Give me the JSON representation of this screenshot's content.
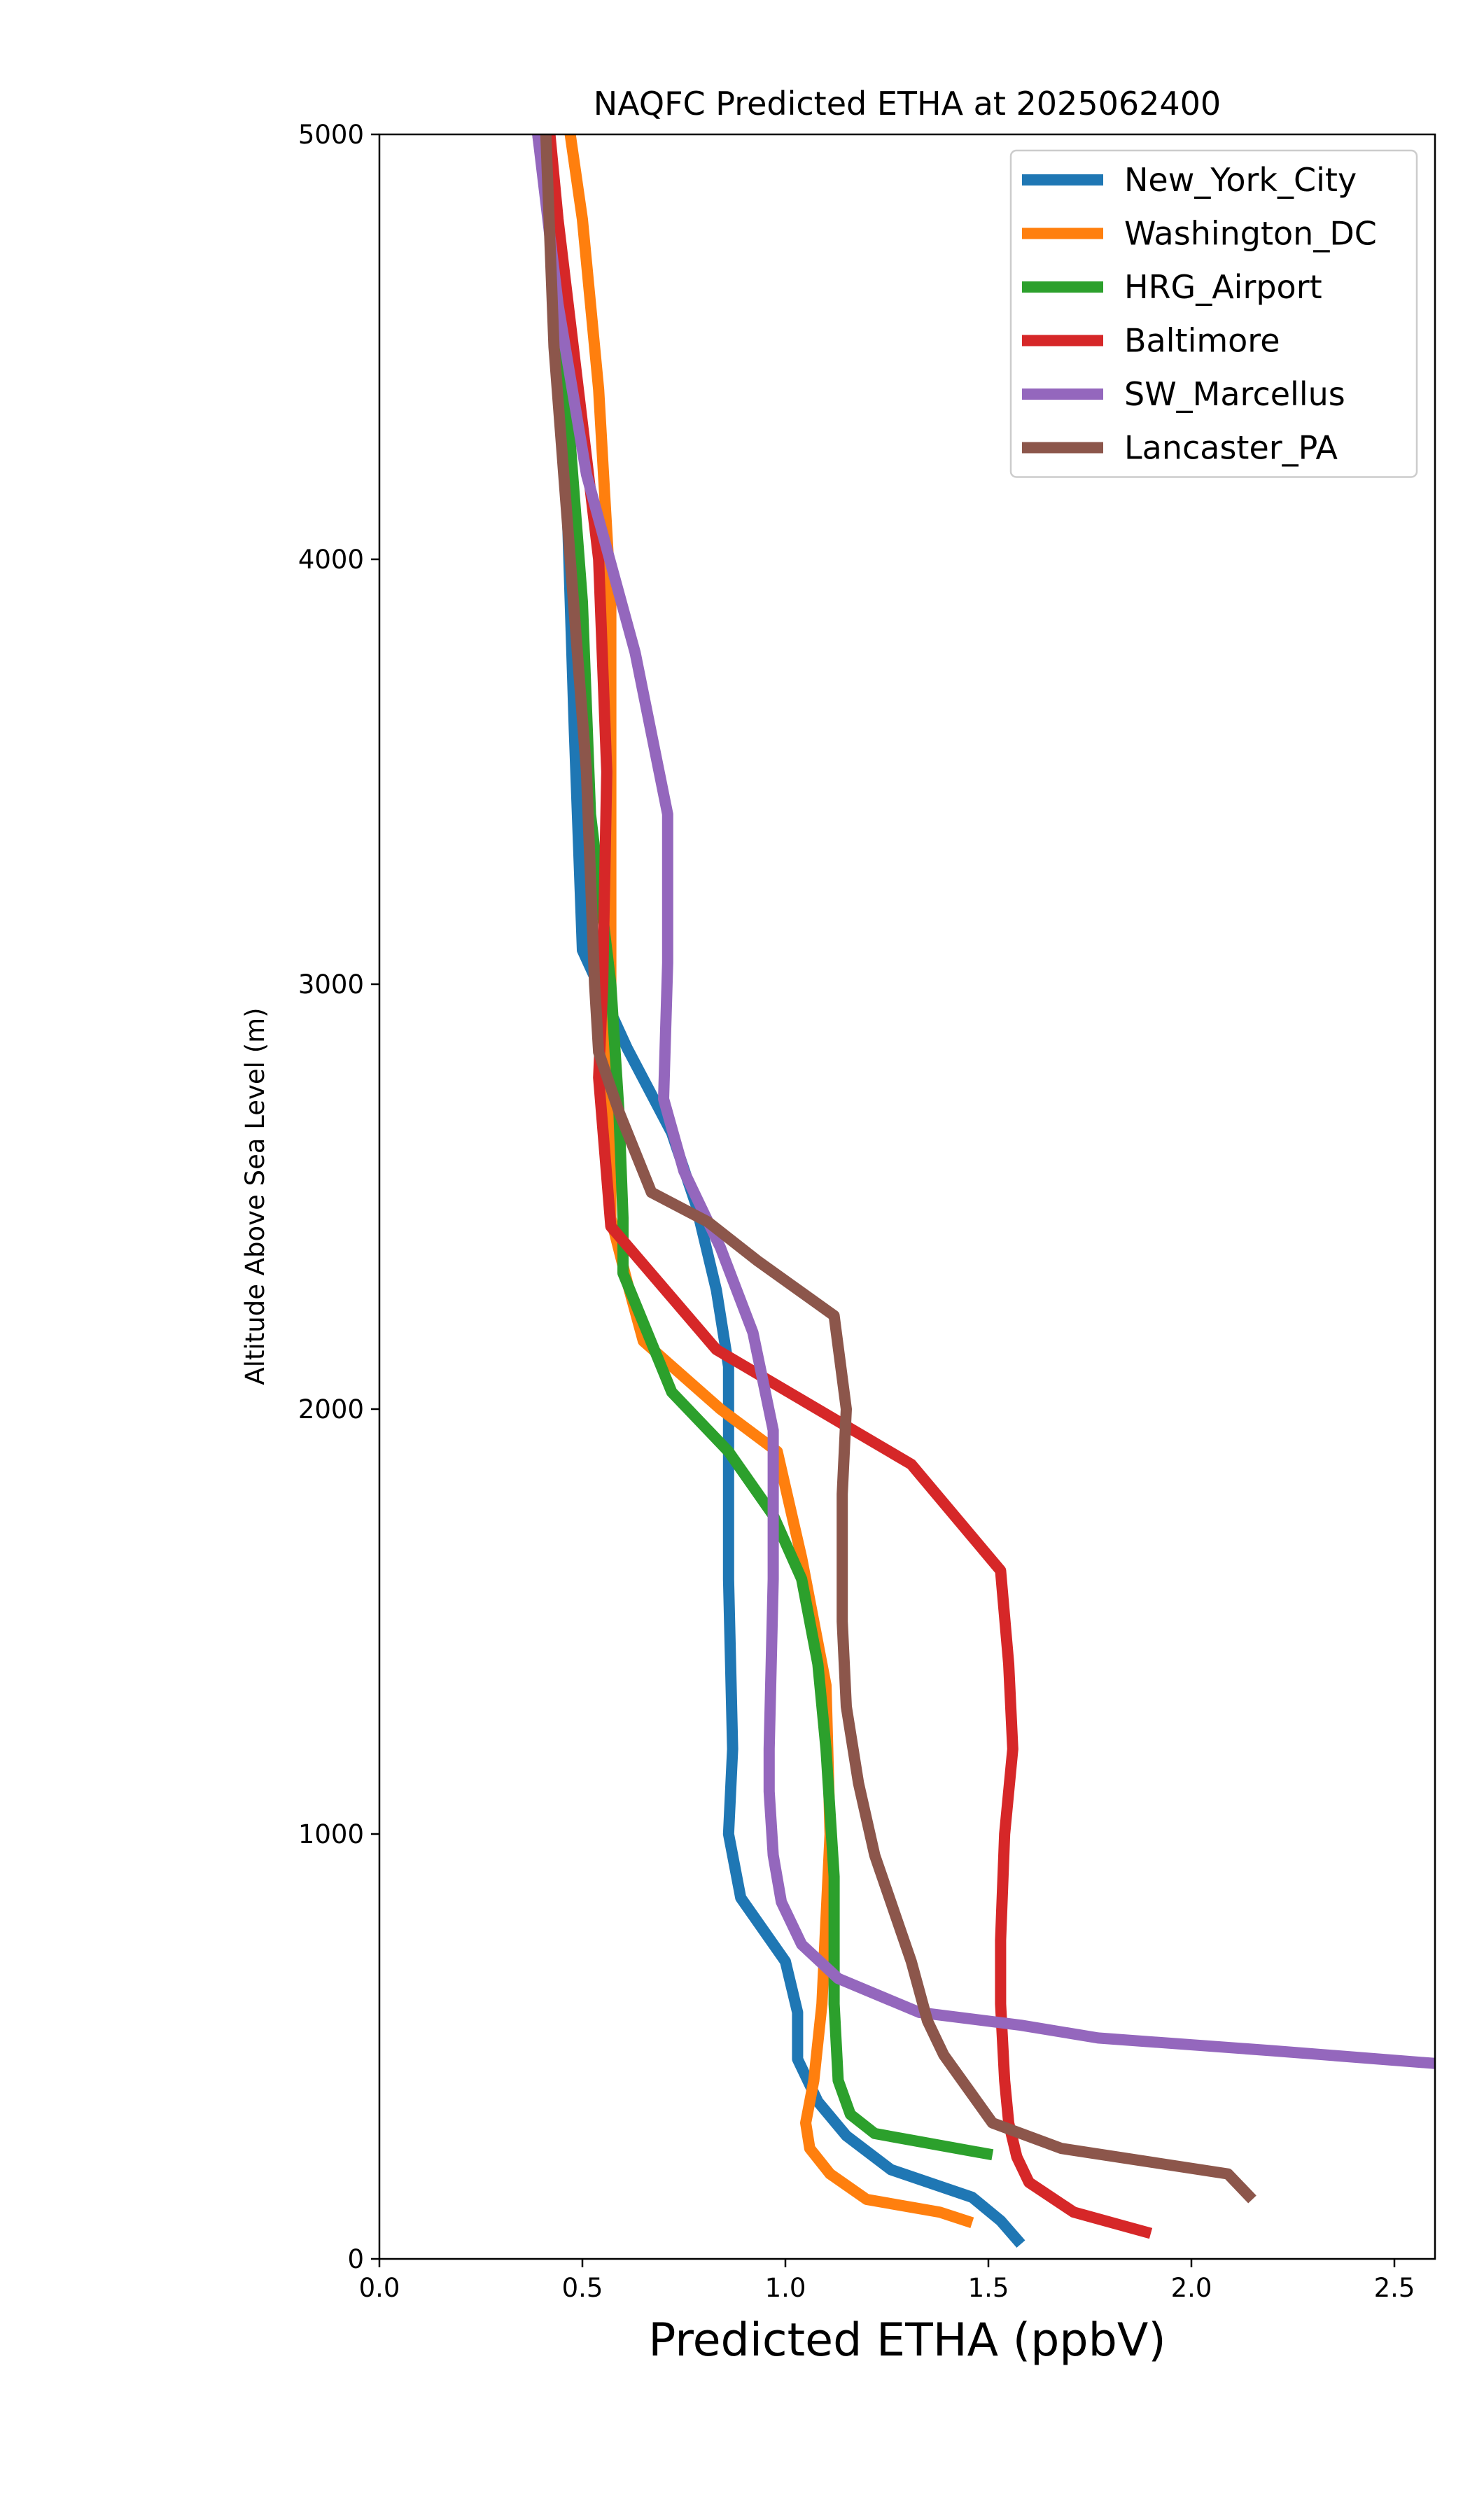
{
  "chart_data": {
    "type": "line",
    "title": "NAQFC Predicted ETHA at 2025062400",
    "xlabel": "Predicted ETHA (ppbV)",
    "ylabel": "Altitude Above Sea Level (m)",
    "xlim": [
      0,
      2.6
    ],
    "ylim": [
      0,
      5000
    ],
    "xticks": [
      "0.0",
      "0.5",
      "1.0",
      "1.5",
      "2.0",
      "2.5"
    ],
    "yticks": [
      "0",
      "1000",
      "2000",
      "3000",
      "4000",
      "5000"
    ],
    "grid": false,
    "legend_position": "top-right",
    "series": [
      {
        "name": "New_York_City",
        "color": "#1f77b4",
        "points": [
          [
            1.58,
            35
          ],
          [
            1.53,
            90
          ],
          [
            1.46,
            145
          ],
          [
            1.26,
            210
          ],
          [
            1.15,
            290
          ],
          [
            1.08,
            370
          ],
          [
            1.03,
            470
          ],
          [
            1.03,
            580
          ],
          [
            1.0,
            700
          ],
          [
            0.89,
            850
          ],
          [
            0.86,
            1000
          ],
          [
            0.87,
            1200
          ],
          [
            0.86,
            1600
          ],
          [
            0.86,
            2100
          ],
          [
            0.83,
            2280
          ],
          [
            0.78,
            2480
          ],
          [
            0.72,
            2650
          ],
          [
            0.61,
            2850
          ],
          [
            0.5,
            3080
          ],
          [
            0.48,
            3600
          ],
          [
            0.46,
            4200
          ],
          [
            0.44,
            4700
          ],
          [
            0.4,
            5000
          ]
        ]
      },
      {
        "name": "Washington_DC",
        "color": "#ff7f0e",
        "points": [
          [
            1.46,
            85
          ],
          [
            1.38,
            110
          ],
          [
            1.2,
            140
          ],
          [
            1.11,
            200
          ],
          [
            1.06,
            260
          ],
          [
            1.05,
            320
          ],
          [
            1.07,
            420
          ],
          [
            1.09,
            600
          ],
          [
            1.11,
            1000
          ],
          [
            1.1,
            1350
          ],
          [
            1.04,
            1650
          ],
          [
            0.98,
            1900
          ],
          [
            0.84,
            2000
          ],
          [
            0.65,
            2160
          ],
          [
            0.61,
            2300
          ],
          [
            0.57,
            2450
          ],
          [
            0.57,
            2800
          ],
          [
            0.57,
            3000
          ],
          [
            0.57,
            3500
          ],
          [
            0.57,
            3900
          ],
          [
            0.54,
            4400
          ],
          [
            0.5,
            4800
          ],
          [
            0.47,
            5000
          ]
        ]
      },
      {
        "name": "HRG_Airport",
        "color": "#2ca02c",
        "points": [
          [
            1.51,
            245
          ],
          [
            1.22,
            295
          ],
          [
            1.16,
            340
          ],
          [
            1.13,
            420
          ],
          [
            1.12,
            600
          ],
          [
            1.12,
            900
          ],
          [
            1.1,
            1200
          ],
          [
            1.08,
            1400
          ],
          [
            1.04,
            1600
          ],
          [
            0.97,
            1750
          ],
          [
            0.86,
            1900
          ],
          [
            0.72,
            2040
          ],
          [
            0.6,
            2320
          ],
          [
            0.6,
            2450
          ],
          [
            0.59,
            2700
          ],
          [
            0.57,
            3000
          ],
          [
            0.52,
            3400
          ],
          [
            0.5,
            3900
          ],
          [
            0.46,
            4400
          ],
          [
            0.42,
            4800
          ],
          [
            0.39,
            5000
          ]
        ]
      },
      {
        "name": "Baltimore",
        "color": "#d62728",
        "points": [
          [
            1.9,
            60
          ],
          [
            1.71,
            110
          ],
          [
            1.6,
            180
          ],
          [
            1.57,
            240
          ],
          [
            1.55,
            320
          ],
          [
            1.54,
            420
          ],
          [
            1.53,
            600
          ],
          [
            1.53,
            750
          ],
          [
            1.54,
            1000
          ],
          [
            1.56,
            1200
          ],
          [
            1.55,
            1400
          ],
          [
            1.53,
            1620
          ],
          [
            1.31,
            1870
          ],
          [
            1.15,
            1960
          ],
          [
            0.83,
            2140
          ],
          [
            0.57,
            2430
          ],
          [
            0.54,
            2780
          ],
          [
            0.55,
            3000
          ],
          [
            0.56,
            3500
          ],
          [
            0.54,
            4000
          ],
          [
            0.49,
            4400
          ],
          [
            0.44,
            4800
          ],
          [
            0.42,
            5000
          ]
        ]
      },
      {
        "name": "SW_Marcellus",
        "color": "#9467bd",
        "points": [
          [
            2.6,
            460
          ],
          [
            2.2,
            490
          ],
          [
            1.77,
            520
          ],
          [
            1.58,
            550
          ],
          [
            1.33,
            580
          ],
          [
            1.13,
            660
          ],
          [
            1.04,
            740
          ],
          [
            0.99,
            840
          ],
          [
            0.97,
            950
          ],
          [
            0.96,
            1100
          ],
          [
            0.96,
            1200
          ],
          [
            0.97,
            1600
          ],
          [
            0.97,
            1950
          ],
          [
            0.92,
            2180
          ],
          [
            0.84,
            2380
          ],
          [
            0.75,
            2560
          ],
          [
            0.7,
            2730
          ],
          [
            0.71,
            3050
          ],
          [
            0.71,
            3400
          ],
          [
            0.63,
            3780
          ],
          [
            0.51,
            4200
          ],
          [
            0.44,
            4600
          ],
          [
            0.39,
            5000
          ]
        ]
      },
      {
        "name": "Lancaster_PA",
        "color": "#8c564b",
        "points": [
          [
            2.15,
            140
          ],
          [
            2.09,
            200
          ],
          [
            1.68,
            260
          ],
          [
            1.51,
            320
          ],
          [
            1.45,
            400
          ],
          [
            1.39,
            480
          ],
          [
            1.35,
            560
          ],
          [
            1.31,
            700
          ],
          [
            1.22,
            950
          ],
          [
            1.18,
            1120
          ],
          [
            1.15,
            1300
          ],
          [
            1.14,
            1500
          ],
          [
            1.14,
            1800
          ],
          [
            1.15,
            2000
          ],
          [
            1.12,
            2220
          ],
          [
            0.93,
            2350
          ],
          [
            0.81,
            2440
          ],
          [
            0.67,
            2510
          ],
          [
            0.59,
            2700
          ],
          [
            0.54,
            2840
          ],
          [
            0.53,
            3000
          ],
          [
            0.51,
            3500
          ],
          [
            0.47,
            4000
          ],
          [
            0.43,
            4500
          ],
          [
            0.41,
            5000
          ]
        ]
      }
    ]
  }
}
